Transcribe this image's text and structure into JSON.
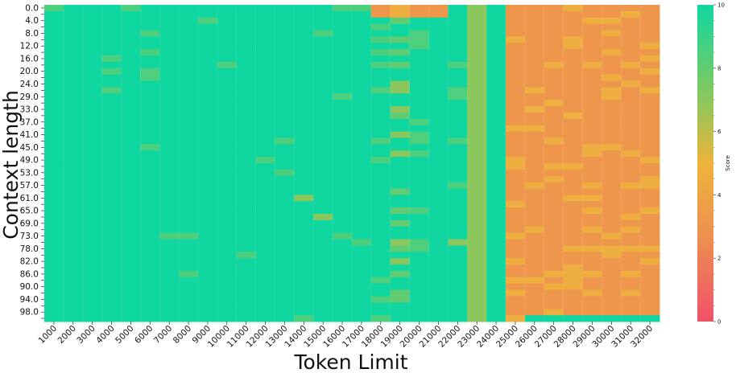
{
  "chart_data": {
    "type": "heatmap",
    "xlabel": "Token Limit",
    "ylabel": "Context length",
    "colorbar": {
      "label": "Score",
      "min": 0,
      "max": 10,
      "ticks": [
        0,
        2,
        4,
        6,
        8,
        10
      ],
      "colors": [
        "#f0506a",
        "#ee8c52",
        "#eeb43c",
        "#8bc75c",
        "#10d7a0"
      ]
    },
    "x_ticks": [
      "1000",
      "2000",
      "3000",
      "4000",
      "5000",
      "6000",
      "7000",
      "8000",
      "9000",
      "10000",
      "11000",
      "12000",
      "13000",
      "14000",
      "15000",
      "16000",
      "17000",
      "18000",
      "19000",
      "20000",
      "21000",
      "22000",
      "23000",
      "24000",
      "25000",
      "26000",
      "27000",
      "28000",
      "29000",
      "30000",
      "31000",
      "32000"
    ],
    "y_ticks": [
      "0.0",
      "4.0",
      "8.0",
      "12.0",
      "16.0",
      "20.0",
      "24.0",
      "29.0",
      "33.0",
      "37.0",
      "41.0",
      "45.0",
      "49.0",
      "53.0",
      "57.0",
      "61.0",
      "65.0",
      "69.0",
      "73.0",
      "78.0",
      "82.0",
      "86.0",
      "90.0",
      "94.0",
      "98.0"
    ],
    "score_scale": "0 = 0, 1 = 5, 2 = 7, 3 = 8, 4 = 9, 5 = 10",
    "rows": [
      "555555555555555555555555555555551555554555555555555555555555555554444455553355555555552222222222222221111111111",
      "555555555555555555555555555555551555554555555555555555555555555554444455553355555555552222222222222221111111111",
      "555555555555555555555555555555551555554555555555555555555555555554444455553355555555552222222222222221111111111",
      "555555555555555555555555555555551555554555555555555555555555555554444455553355555555552222222222222221111111111",
      "555555555555555555555555555555551555554555555555555555555555555554444455553355555555552222222222222221111111111"
    ],
    "cells": [
      "5555555555555555555555555555555555555555555555555555555555555555555555555555555555555555555555551111111111112212222221222222222222",
      "5555555555555555555555555555555555555555555555555555555555555555555555555555555555555555555555555555555555551111111111111111111111"
    ]
  }
}
